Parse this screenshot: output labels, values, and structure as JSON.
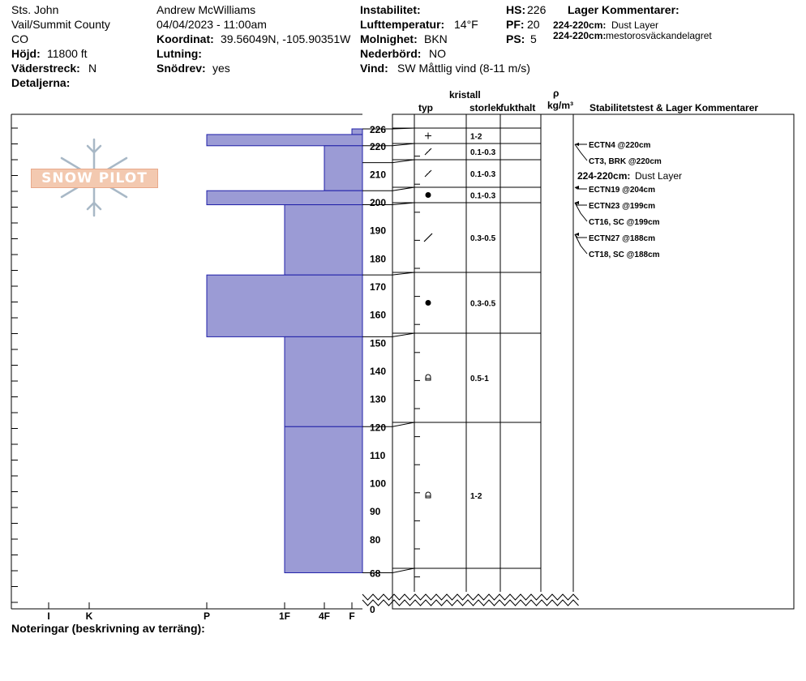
{
  "header": {
    "location": "Sts. John",
    "region": "Vail/Summit County",
    "state": "CO",
    "elevation_label": "Höjd:",
    "elevation_value": "11800 ft",
    "aspect_label": "Väderstreck:",
    "aspect_value": "N",
    "details_label": "Detaljerna:",
    "observer": "Andrew McWilliams",
    "datetime": "04/04/2023 - 11:00am",
    "coord_label": "Koordinat:",
    "coord_value": "39.56049N, -105.90351W",
    "slope_label": "Lutning:",
    "slope_value": "",
    "drift_label": "Snödrev:",
    "drift_value": "yes",
    "instability_label": "Instabilitet:",
    "airtemp_label": "Lufttemperatur:",
    "airtemp_value": "14°F",
    "sky_label": "Molnighet:",
    "sky_value": "BKN",
    "precip_label": "Nederbörd:",
    "precip_value": "NO",
    "wind_label": "Vind:",
    "wind_value": "SW Måttlig vind (8-11 m/s)",
    "hs_label": "HS:",
    "hs_value": "226",
    "pf_label": "PF:",
    "pf_value": "20",
    "ps_label": "PS:",
    "ps_value": "5",
    "layer_comments_title": "Lager Kommentarer:",
    "layer_comments": [
      {
        "range": "224-220cm:",
        "text": "Dust Layer"
      },
      {
        "range": "224-220cm:",
        "text": "mestorosväckandelagret"
      }
    ]
  },
  "columns": {
    "crystal": "kristall",
    "type": "typ",
    "size": "storlek",
    "moisture": "fukthalt",
    "rho": "ρ",
    "density_unit": "kg/m³",
    "stability": "Stabilitetstest & Lager Kommentarer"
  },
  "footer": {
    "notes": "Noteringar (beskrivning av terräng):"
  },
  "chart_data": {
    "type": "bar",
    "description_axis": "height_cm",
    "hardness_ticks": [
      "I",
      "K",
      "P",
      "1F",
      "4F",
      "F"
    ],
    "hardness_scale": {
      "F": 1,
      "4F": 2,
      "1F": 3,
      "P": 4,
      "K": 5,
      "I": 6
    },
    "hardness_profile": [
      {
        "top": 226,
        "bottom": 224,
        "hardness": "F"
      },
      {
        "top": 224,
        "bottom": 220,
        "hardness": "P"
      },
      {
        "top": 220,
        "bottom": 204,
        "hardness": "4F"
      },
      {
        "top": 204,
        "bottom": 199,
        "hardness": "P"
      },
      {
        "top": 199,
        "bottom": 174,
        "hardness": "1F"
      },
      {
        "top": 174,
        "bottom": 152,
        "hardness": "P"
      },
      {
        "top": 152,
        "bottom": 120,
        "hardness": "1F"
      },
      {
        "top": 120,
        "bottom": 68,
        "hardness": "1F"
      }
    ],
    "height_ticks": [
      226,
      220,
      210,
      200,
      190,
      180,
      170,
      160,
      150,
      140,
      130,
      120,
      110,
      100,
      90,
      80,
      68,
      0
    ],
    "layers": [
      {
        "top": 226,
        "bottom": 220,
        "crystal_icon": "plus",
        "size": "1-2"
      },
      {
        "top": 220,
        "bottom": 214,
        "crystal_icon": "slash-dots",
        "size": "0.1-0.3"
      },
      {
        "top": 214,
        "bottom": 204,
        "crystal_icon": "slash-dots",
        "size": "0.1-0.3"
      },
      {
        "top": 204,
        "bottom": 199,
        "crystal_icon": "dot",
        "size": "0.1-0.3"
      },
      {
        "top": 199,
        "bottom": 174,
        "crystal_icon": "slash",
        "size": "0.3-0.5"
      },
      {
        "top": 174,
        "bottom": 152,
        "crystal_icon": "dot",
        "size": "0.3-0.5"
      },
      {
        "top": 152,
        "bottom": 120,
        "crystal_icon": "cup",
        "size": "0.5-1"
      },
      {
        "top": 120,
        "bottom": 68,
        "crystal_icon": "cup",
        "size": "1-2"
      }
    ],
    "stability_tests": [
      {
        "label": "ECTN4 @220cm",
        "depth": 220
      },
      {
        "label": "CT3, BRK @220cm",
        "depth": 220
      },
      {
        "label": "224-220cm:",
        "text": "Dust Layer"
      },
      {
        "label": "ECTN19 @204cm",
        "depth": 204
      },
      {
        "label": "ECTN23 @199cm",
        "depth": 199
      },
      {
        "label": "CT16, SC @199cm",
        "depth": 199
      },
      {
        "label": "ECTN27 @188cm",
        "depth": 188
      },
      {
        "label": "CT18, SC @188cm",
        "depth": 188
      }
    ]
  }
}
